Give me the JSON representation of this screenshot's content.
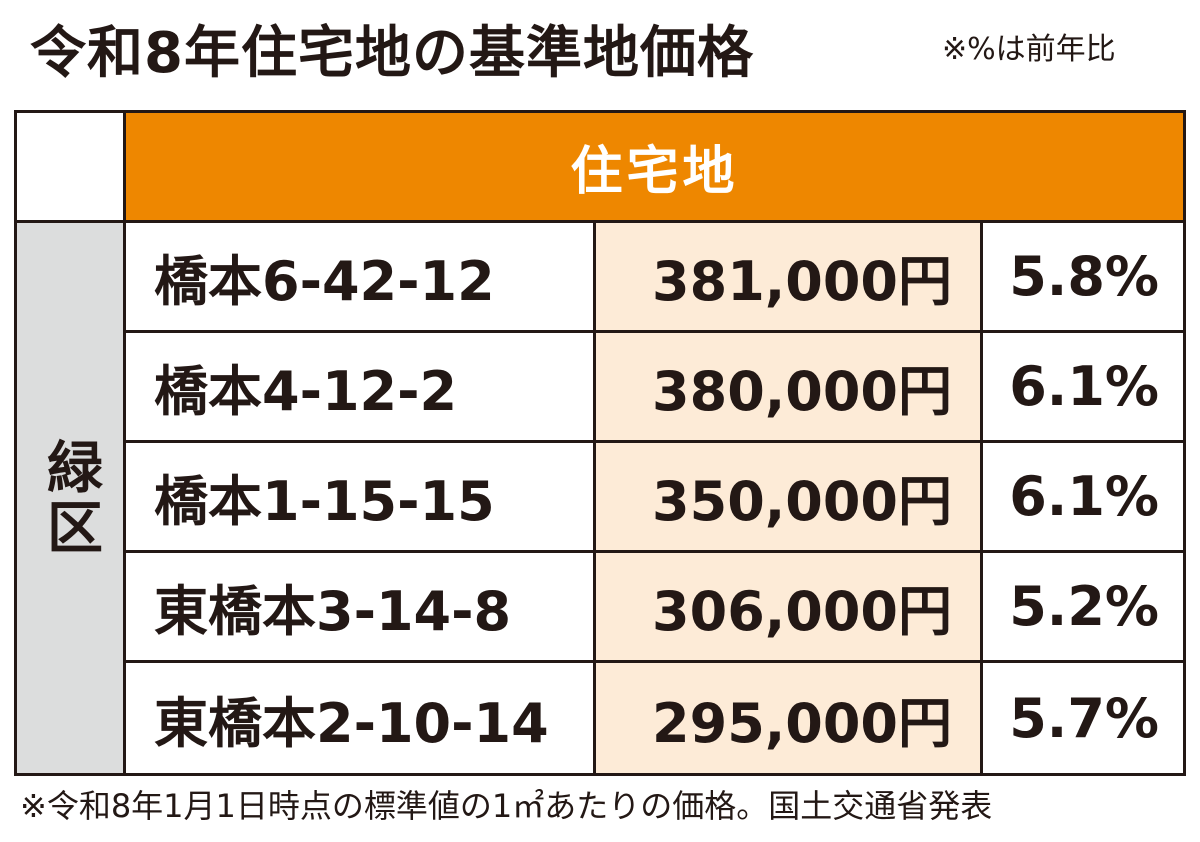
{
  "title": "令和8年住宅地の基準地価格",
  "note_top": "※%は前年比",
  "table": {
    "header": "住宅地",
    "ward": "緑区",
    "rows": [
      {
        "address": "橋本6-42-12",
        "price": "381,000円",
        "change": "5.8%"
      },
      {
        "address": "橋本4-12-2",
        "price": "380,000円",
        "change": "6.1%"
      },
      {
        "address": "橋本1-15-15",
        "price": "350,000円",
        "change": "6.1%"
      },
      {
        "address": "東橋本3-14-8",
        "price": "306,000円",
        "change": "5.2%"
      },
      {
        "address": "東橋本2-10-14",
        "price": "295,000円",
        "change": "5.7%"
      }
    ]
  },
  "footnote": "※令和8年1月1日時点の標準値の1㎡あたりの価格。国土交通省発表",
  "colors": {
    "header_bg": "#ee8700",
    "price_bg": "#fdebd7",
    "ward_bg": "#dcdddd",
    "text": "#231815"
  }
}
